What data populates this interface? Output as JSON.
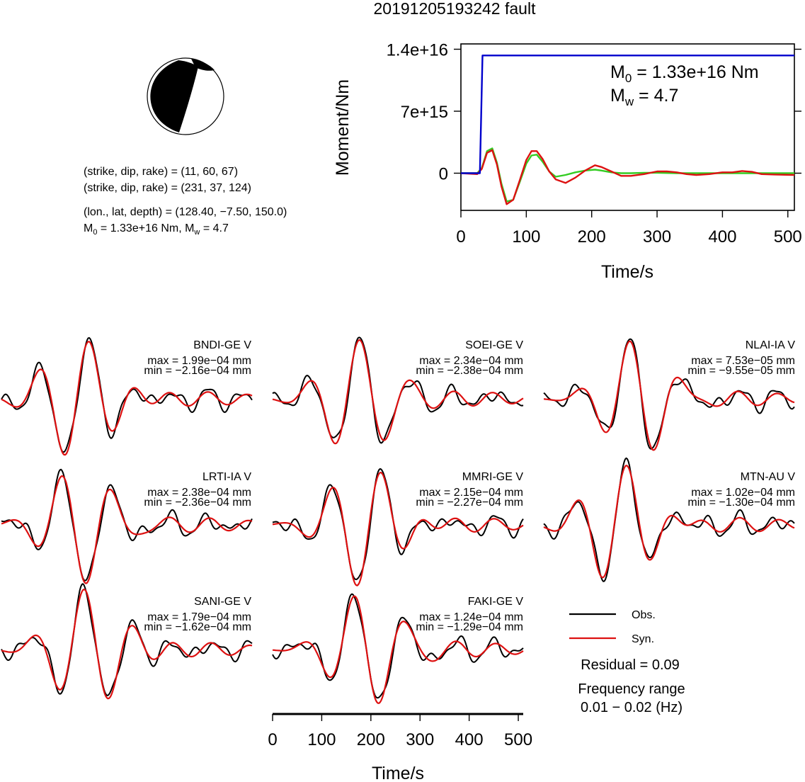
{
  "title": "20191205193242 fault",
  "info": {
    "line1": "(strike, dip, rake) = (11, 60, 67)",
    "line2": "(strike, dip, rake) = (231, 37, 124)",
    "line3": "(lon., lat, depth) = (128.40, −7.50, 150.0)",
    "m0_prefix": "M",
    "m0_sub": "0",
    "m0_rest": " = 1.33e+16 Nm, M",
    "mw_sub": "w",
    "mw_rest": " = 4.7"
  },
  "moment_plot": {
    "ylabel": "Moment/Nm",
    "xlabel": "Time/s",
    "yticks": [
      "1.4e+16",
      "7e+15",
      "0"
    ],
    "ytick_values": [
      1.4e+16,
      7000000000000000.0,
      0
    ],
    "xticks": [
      "0",
      "100",
      "200",
      "300",
      "400",
      "500"
    ],
    "xtick_values": [
      0,
      100,
      200,
      300,
      400,
      500
    ],
    "xlim": [
      0,
      510
    ],
    "ylim": [
      -4200000000000000.0,
      1.46e+16
    ],
    "annotation_m0_prefix": "M",
    "annotation_m0_sub": "0",
    "annotation_m0_rest": " = 1.33e+16 Nm",
    "annotation_mw_prefix": "M",
    "annotation_mw_sub": "w",
    "annotation_mw_rest": " = 4.7",
    "colors": {
      "cumulative": "#0000cc",
      "rate_red": "#dd1111",
      "rate_green": "#33cc22"
    }
  },
  "chart_data": {
    "type": "line",
    "title": "20191205193242 fault",
    "xlabel": "Time/s",
    "ylabel": "Moment/Nm",
    "xlim": [
      0,
      510
    ],
    "series": [
      {
        "color": "#0000cc",
        "x": [
          0,
          26,
          29,
          33,
          510
        ],
        "y": [
          0,
          0,
          0,
          1.33e+16,
          1.33e+16
        ]
      },
      {
        "color": "#dd1111",
        "x": [
          0,
          25,
          32,
          40,
          48,
          55,
          62,
          70,
          80,
          90,
          100,
          108,
          116,
          125,
          135,
          145,
          160,
          175,
          190,
          205,
          215,
          230,
          245,
          260,
          280,
          300,
          315,
          330,
          345,
          360,
          380,
          400,
          415,
          430,
          445,
          460,
          480,
          510
        ],
        "y": [
          0,
          -100000000000000.0,
          500000000000000.0,
          2300000000000000.0,
          2600000000000000.0,
          1000000000000000.0,
          -1500000000000000.0,
          -3500000000000000.0,
          -3000000000000000.0,
          -800000000000000.0,
          1500000000000000.0,
          2500000000000000.0,
          2500000000000000.0,
          1600000000000000.0,
          200000000000000.0,
          -700000000000000.0,
          -1100000000000000.0,
          -500000000000000.0,
          300000000000000.0,
          900000000000000.0,
          700000000000000.0,
          200000000000000.0,
          -300000000000000.0,
          -300000000000000.0,
          -100000000000000.0,
          200000000000000.0,
          200000000000000.0,
          100000000000000.0,
          -100000000000000.0,
          -200000000000000.0,
          -100000000000000.0,
          100000000000000.0,
          100000000000000.0,
          250000000000000.0,
          150000000000000.0,
          -100000000000000.0,
          -150000000000000.0,
          -200000000000000.0
        ]
      },
      {
        "color": "#33cc22",
        "x": [
          0,
          25,
          32,
          40,
          48,
          55,
          62,
          70,
          80,
          90,
          100,
          108,
          116,
          125,
          135,
          145,
          160,
          175,
          190,
          205,
          215,
          230,
          245,
          260,
          280,
          300,
          330,
          360,
          400,
          510
        ],
        "y": [
          0,
          0,
          600000000000000.0,
          2500000000000000.0,
          2800000000000000.0,
          1200000000000000.0,
          -1200000000000000.0,
          -3200000000000000.0,
          -3000000000000000.0,
          -1000000000000000.0,
          1100000000000000.0,
          2000000000000000.0,
          2100000000000000.0,
          1300000000000000.0,
          200000000000000.0,
          -400000000000000.0,
          -200000000000000.0,
          100000000000000.0,
          300000000000000.0,
          400000000000000.0,
          300000000000000.0,
          100000000000000.0,
          0.0,
          0.0,
          50000000000000.0,
          50000000000000.0,
          0.0,
          0.0,
          0.0,
          0.0
        ]
      }
    ]
  },
  "stations": [
    {
      "name": "BNDI-GE V",
      "max": "max = 1.99e−04 mm",
      "min": "min = −2.16e−04 mm"
    },
    {
      "name": "SOEI-GE V",
      "max": "max = 2.34e−04 mm",
      "min": "min = −2.38e−04 mm"
    },
    {
      "name": "NLAI-IA V",
      "max": "max = 7.53e−05 mm",
      "min": "min = −9.55e−05 mm"
    },
    {
      "name": "LRTI-IA V",
      "max": "max = 2.38e−04 mm",
      "min": "min = −2.36e−04 mm"
    },
    {
      "name": "MMRI-GE V",
      "max": "max = 2.15e−04 mm",
      "min": "min = −2.27e−04 mm"
    },
    {
      "name": "MTN-AU V",
      "max": "max = 1.02e−04 mm",
      "min": "min = −1.30e−04 mm"
    },
    {
      "name": "SANI-GE V",
      "max": "max = 1.79e−04 mm",
      "min": "min = −1.62e−04 mm"
    },
    {
      "name": "FAKI-GE V",
      "max": "max = 1.24e−04 mm",
      "min": "min = −1.29e−04 mm"
    }
  ],
  "legend": {
    "obs_label": "Obs.",
    "syn_label": "Syn.",
    "obs_color": "#000000",
    "syn_color": "#dd1111",
    "residual": "Residual = 0.09",
    "freq_title": "Frequency range",
    "freq_range": "0.01 − 0.02 (Hz)"
  },
  "wave_axis": {
    "xlabel": "Time/s",
    "xticks": [
      "0",
      "100",
      "200",
      "300",
      "400",
      "500"
    ],
    "xtick_values": [
      0,
      100,
      200,
      300,
      400,
      500
    ],
    "xlim": [
      0,
      510
    ]
  }
}
